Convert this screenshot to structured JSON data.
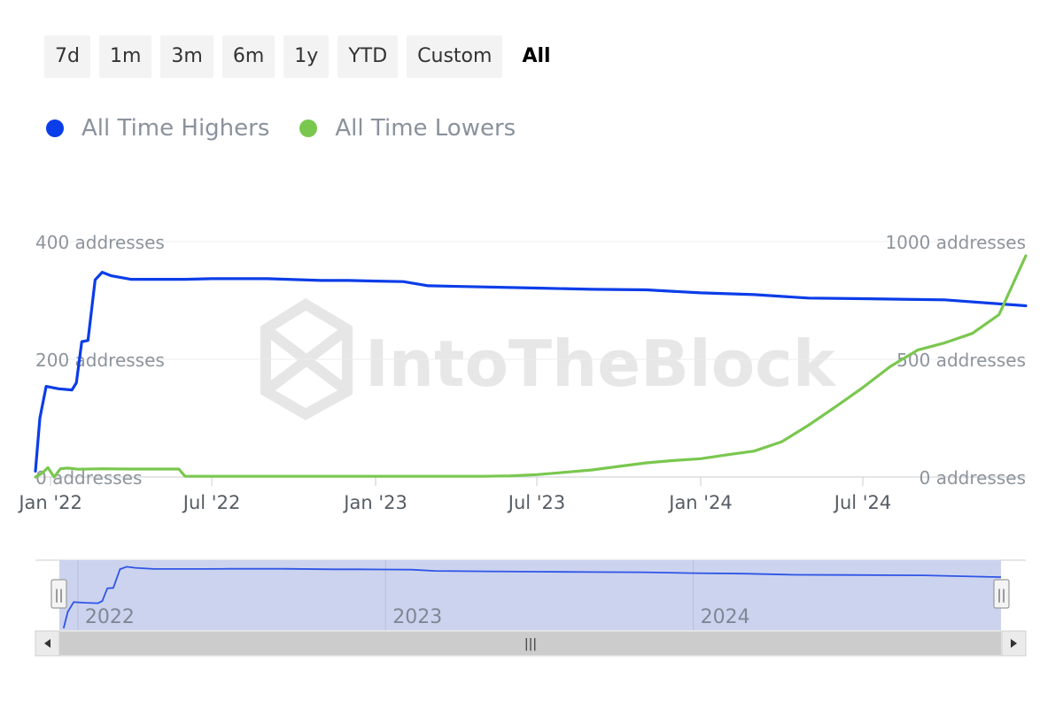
{
  "range_buttons": [
    {
      "label": "7d",
      "active": false
    },
    {
      "label": "1m",
      "active": false
    },
    {
      "label": "3m",
      "active": false
    },
    {
      "label": "6m",
      "active": false
    },
    {
      "label": "1y",
      "active": false
    },
    {
      "label": "YTD",
      "active": false
    },
    {
      "label": "Custom",
      "active": false
    },
    {
      "label": "All",
      "active": true
    }
  ],
  "legend": [
    {
      "label": "All Time Highers",
      "color": "#0b3de8"
    },
    {
      "label": "All Time Lowers",
      "color": "#7ac74f"
    }
  ],
  "watermark": "IntoTheBlock",
  "navigator": {
    "year_labels": [
      "2022",
      "2023",
      "2024"
    ],
    "handle_glyph": "||",
    "scroll_glyph": "|||"
  },
  "chart_data": {
    "type": "line",
    "x_axis": {
      "type": "date",
      "tick_labels": [
        "Jan '22",
        "Jul '22",
        "Jan '23",
        "Jul '23",
        "Jan '24",
        "Jul '24"
      ],
      "tick_dates": [
        "2022-01-01",
        "2022-07-01",
        "2023-01-01",
        "2023-07-01",
        "2024-01-01",
        "2024-07-01"
      ],
      "range": [
        "2021-12-15",
        "2024-12-31"
      ]
    },
    "y_axis_left": {
      "ticks": [
        0,
        200,
        400
      ],
      "tick_labels": [
        "0 addresses",
        "200 addresses",
        "400 addresses"
      ],
      "range": [
        0,
        400
      ]
    },
    "y_axis_right": {
      "ticks": [
        0,
        500,
        1000
      ],
      "tick_labels": [
        "0 addresses",
        "500 addresses",
        "1000 addresses"
      ],
      "range": [
        0,
        1000
      ]
    },
    "grid": true,
    "legend_position": "top-left",
    "series": [
      {
        "name": "All Time Highers",
        "axis": "left",
        "color": "#0b3de8",
        "points": [
          [
            "2021-12-15",
            10
          ],
          [
            "2021-12-20",
            100
          ],
          [
            "2021-12-27",
            154
          ],
          [
            "2022-01-10",
            150
          ],
          [
            "2022-01-25",
            148
          ],
          [
            "2022-01-30",
            160
          ],
          [
            "2022-02-05",
            230
          ],
          [
            "2022-02-12",
            232
          ],
          [
            "2022-02-20",
            335
          ],
          [
            "2022-02-28",
            348
          ],
          [
            "2022-03-10",
            342
          ],
          [
            "2022-04-01",
            336
          ],
          [
            "2022-05-01",
            336
          ],
          [
            "2022-06-01",
            336
          ],
          [
            "2022-07-01",
            337
          ],
          [
            "2022-09-01",
            337
          ],
          [
            "2022-11-01",
            334
          ],
          [
            "2022-12-01",
            334
          ],
          [
            "2023-01-01",
            333
          ],
          [
            "2023-02-01",
            332
          ],
          [
            "2023-03-01",
            325
          ],
          [
            "2023-05-01",
            323
          ],
          [
            "2023-07-01",
            321
          ],
          [
            "2023-09-01",
            319
          ],
          [
            "2023-11-01",
            318
          ],
          [
            "2024-01-01",
            313
          ],
          [
            "2024-03-01",
            310
          ],
          [
            "2024-05-01",
            304
          ],
          [
            "2024-07-01",
            303
          ],
          [
            "2024-10-01",
            301
          ],
          [
            "2024-12-31",
            291
          ]
        ]
      },
      {
        "name": "All Time Lowers",
        "axis": "right",
        "color": "#7ac74f",
        "points": [
          [
            "2021-12-15",
            0
          ],
          [
            "2021-12-22",
            15
          ],
          [
            "2021-12-29",
            40
          ],
          [
            "2022-01-05",
            0
          ],
          [
            "2022-01-12",
            35
          ],
          [
            "2022-01-20",
            38
          ],
          [
            "2022-02-01",
            33
          ],
          [
            "2022-03-01",
            35
          ],
          [
            "2022-04-01",
            34
          ],
          [
            "2022-05-01",
            34
          ],
          [
            "2022-05-25",
            34
          ],
          [
            "2022-06-01",
            3
          ],
          [
            "2022-09-01",
            3
          ],
          [
            "2022-12-01",
            3
          ],
          [
            "2023-03-01",
            3
          ],
          [
            "2023-05-01",
            3
          ],
          [
            "2023-06-01",
            5
          ],
          [
            "2023-07-01",
            10
          ],
          [
            "2023-08-01",
            20
          ],
          [
            "2023-09-01",
            30
          ],
          [
            "2023-10-01",
            45
          ],
          [
            "2023-11-01",
            60
          ],
          [
            "2023-12-01",
            70
          ],
          [
            "2024-01-01",
            78
          ],
          [
            "2024-02-01",
            95
          ],
          [
            "2024-03-01",
            110
          ],
          [
            "2024-04-01",
            150
          ],
          [
            "2024-05-01",
            220
          ],
          [
            "2024-06-01",
            300
          ],
          [
            "2024-07-01",
            380
          ],
          [
            "2024-08-01",
            470
          ],
          [
            "2024-09-01",
            540
          ],
          [
            "2024-10-01",
            570
          ],
          [
            "2024-11-01",
            610
          ],
          [
            "2024-12-01",
            690
          ],
          [
            "2024-12-31",
            940
          ]
        ]
      }
    ]
  }
}
